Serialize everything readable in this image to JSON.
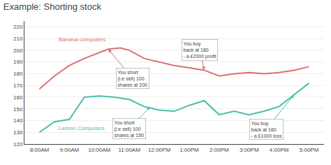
{
  "chart_data": {
    "type": "line",
    "title": "Example: Shorting stock",
    "xlim": [
      -0.5,
      9.5
    ],
    "xticks": [
      {
        "value": 0,
        "label": "8:00AM"
      },
      {
        "value": 1,
        "label": "9:00AM"
      },
      {
        "value": 2,
        "label": "10:00AM"
      },
      {
        "value": 3,
        "label": "11:00AM"
      },
      {
        "value": 4,
        "label": "12:00PM"
      },
      {
        "value": 5,
        "label": "1:00PM"
      },
      {
        "value": 6,
        "label": "2:00PM"
      },
      {
        "value": 7,
        "label": "3:00PM"
      },
      {
        "value": 8,
        "label": "4:00PM"
      },
      {
        "value": 9,
        "label": "5:00PM"
      }
    ],
    "ylim": [
      120,
      225
    ],
    "yticks": [
      120,
      130,
      140,
      150,
      160,
      170,
      180,
      190,
      200,
      210,
      220
    ],
    "grid": true,
    "series": [
      {
        "name": "Banana computers",
        "color": "#e07070",
        "x": [
          0,
          0.5,
          1.0,
          1.5,
          2.0,
          2.3,
          2.7,
          3.0,
          3.5,
          4.0,
          4.5,
          5.0,
          5.5,
          6.0,
          6.5,
          7.0,
          7.5,
          8.0,
          8.5,
          9.0
        ],
        "values": [
          167,
          178,
          187,
          193,
          198,
          201,
          202,
          200,
          193,
          190,
          187,
          185,
          183,
          178,
          180,
          181,
          180,
          181,
          183,
          186
        ]
      },
      {
        "name": "Lemon Computers",
        "color": "#4abfaa",
        "x": [
          0,
          0.5,
          1.0,
          1.5,
          2.0,
          2.5,
          3.0,
          3.5,
          4.0,
          4.5,
          5.0,
          5.5,
          6.0,
          6.5,
          7.0,
          7.5,
          8.0,
          8.5,
          9.0
        ],
        "values": [
          130,
          139,
          141,
          160,
          161,
          160,
          158,
          152,
          149,
          148,
          153,
          157,
          145,
          148,
          145,
          148,
          152,
          162,
          172
        ]
      }
    ],
    "annotations": [
      {
        "text": "You short\n(i.e sell) 100\nshares at 200",
        "x": 2.3,
        "y": 201,
        "color": "#e07070"
      },
      {
        "text": "You short\n(i.e sell) 100\nshares at 150",
        "x": 3.7,
        "y": 152,
        "color": "#4abfaa"
      },
      {
        "text": "You buy\nback at 180\n- a £2000 profit",
        "x": 5.5,
        "y": 183,
        "color": "#e07070"
      },
      {
        "text": "You buy\nback at 160\n- a £1000 loss",
        "x": 8.5,
        "y": 162,
        "color": "#4abfaa"
      }
    ]
  }
}
